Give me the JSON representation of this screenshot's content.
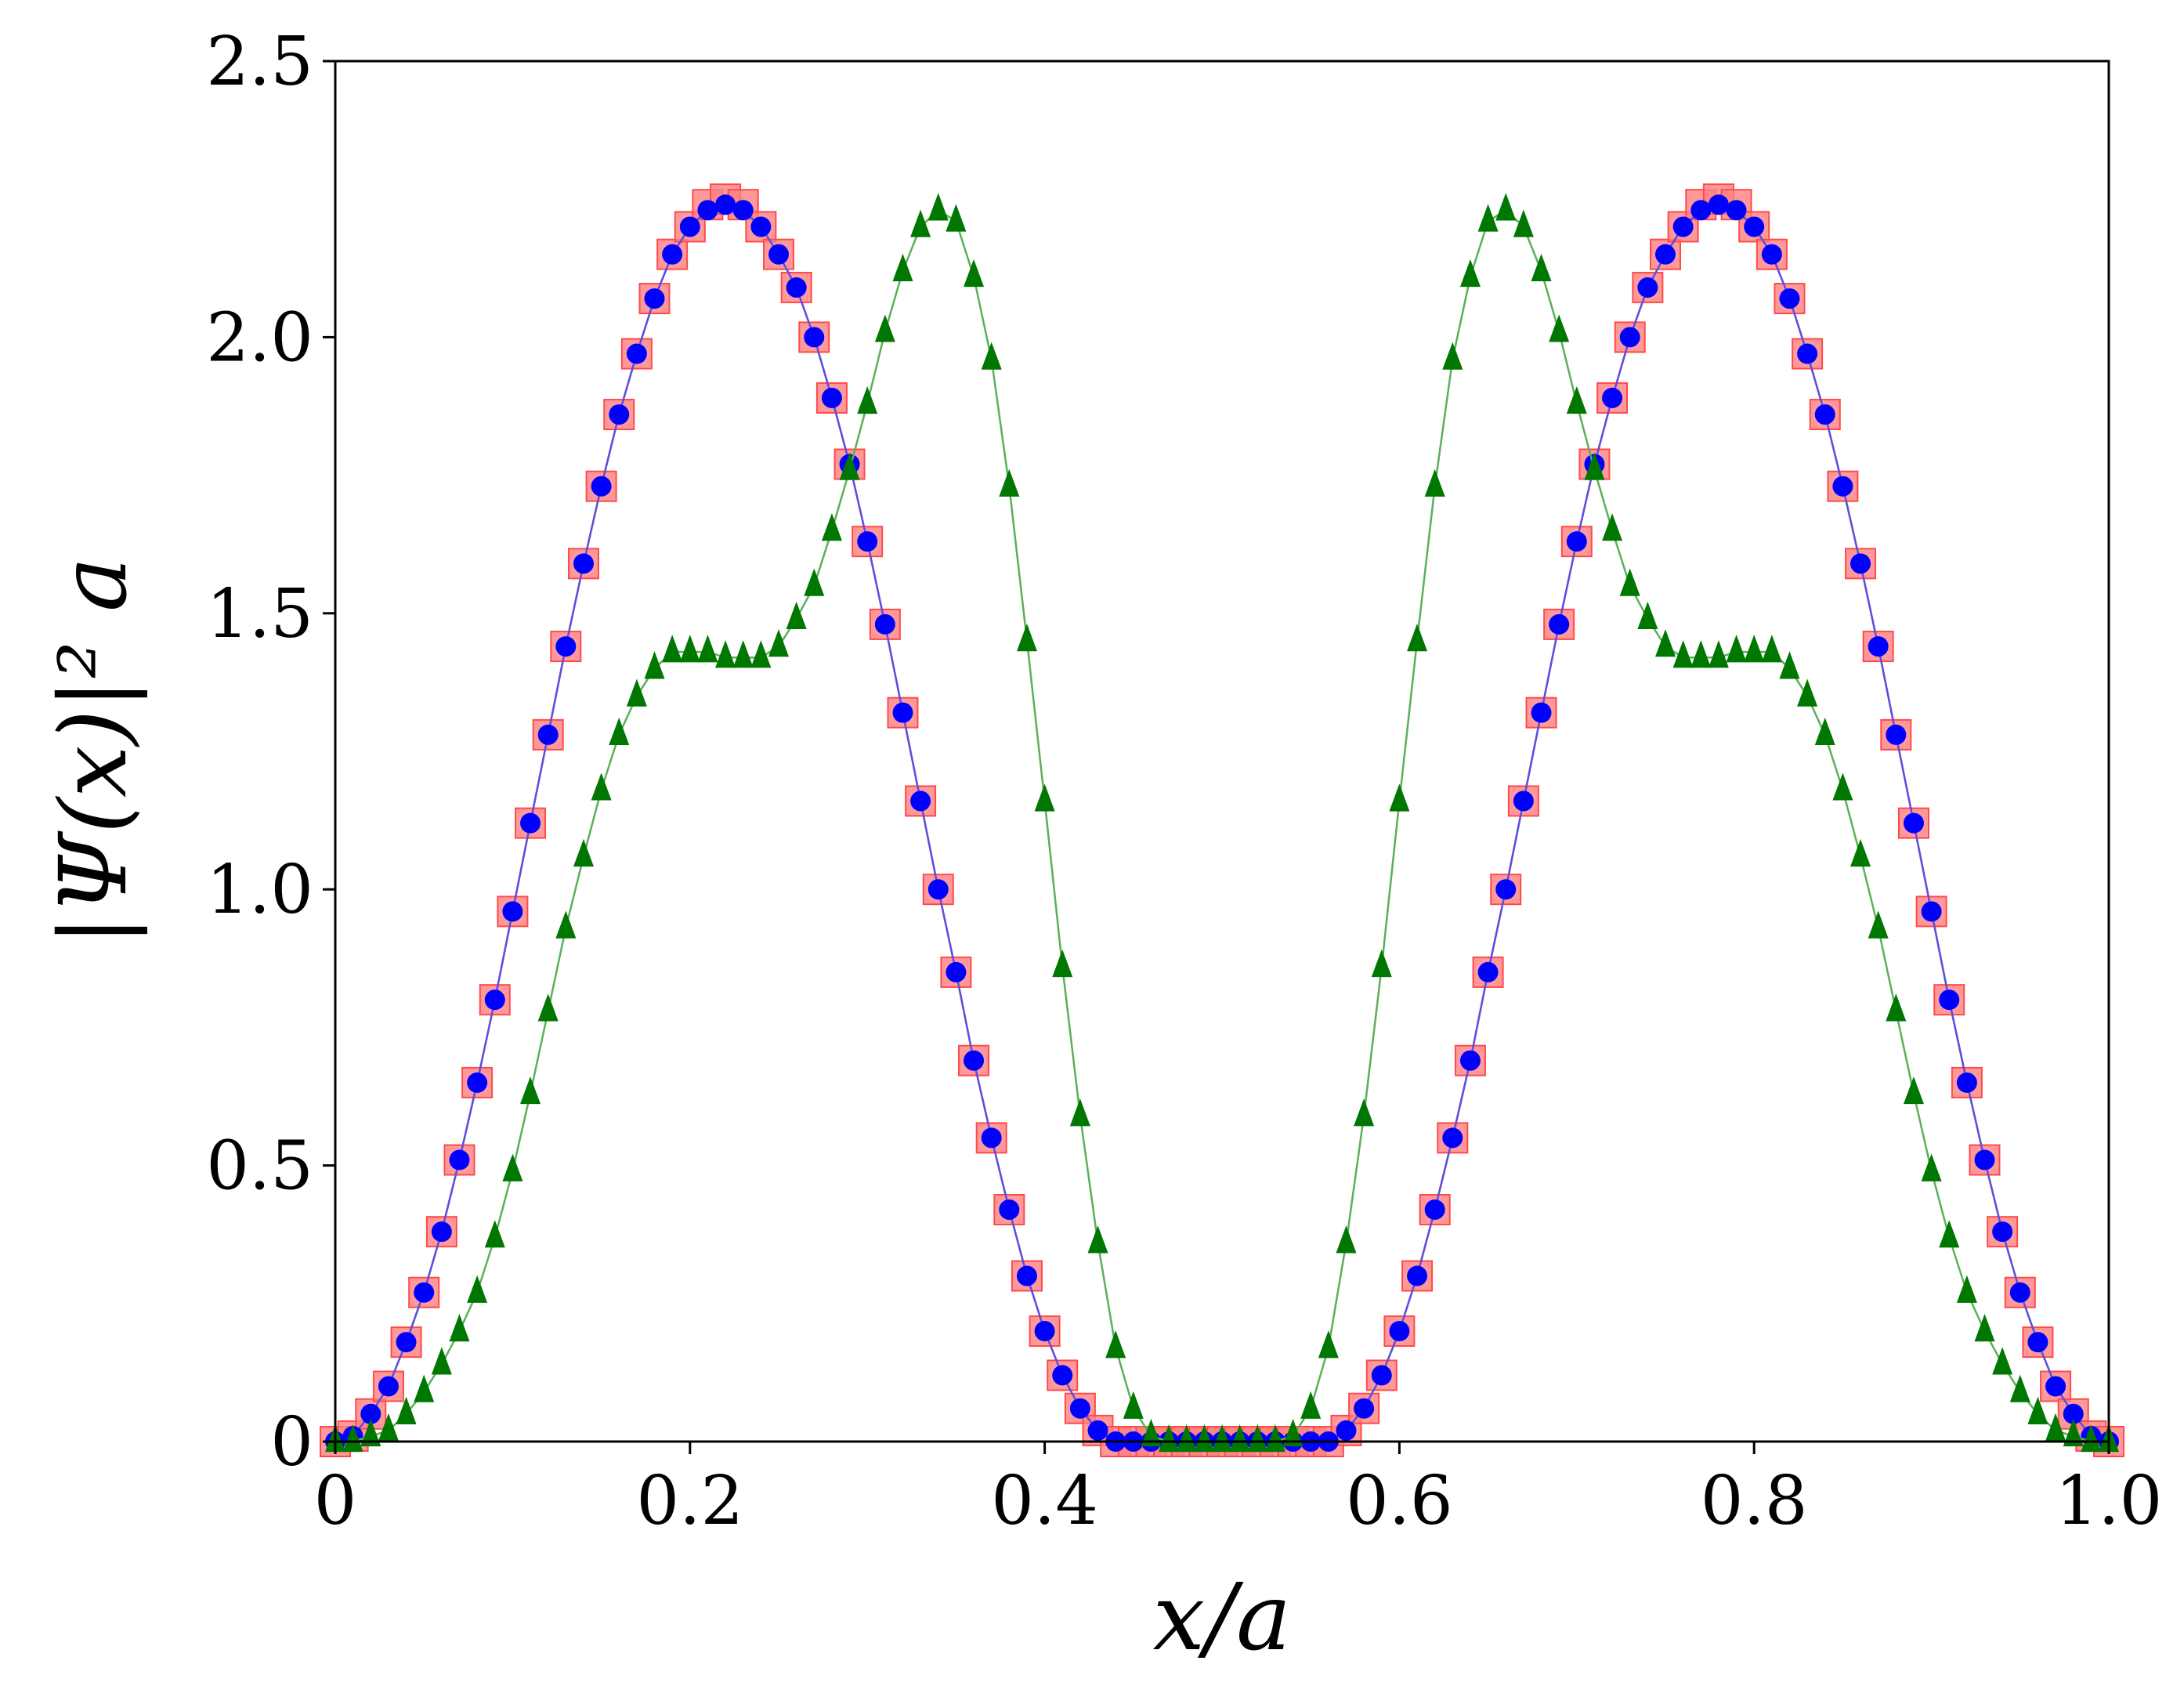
{
  "chart_data": {
    "type": "scatter",
    "title": "",
    "xlabel": "x/a",
    "ylabel": "|Ψ(x)|² a",
    "xlim": [
      0,
      1
    ],
    "ylim": [
      0,
      2.5
    ],
    "xticks": [
      0,
      0.2,
      0.4,
      0.6,
      0.8,
      1.0
    ],
    "xtick_labels": [
      "0",
      "0.2",
      "0.4",
      "0.6",
      "0.8",
      "1.0"
    ],
    "yticks": [
      0,
      0.5,
      1.0,
      1.5,
      2.0,
      2.5
    ],
    "ytick_labels": [
      "0",
      "0.5",
      "1.0",
      "1.5",
      "2.0",
      "2.5"
    ],
    "grid": false,
    "x": [
      0.0,
      0.01,
      0.02,
      0.03,
      0.04,
      0.05,
      0.06,
      0.07,
      0.08,
      0.09,
      0.1,
      0.11,
      0.12,
      0.13,
      0.14,
      0.15,
      0.16,
      0.17,
      0.18,
      0.19,
      0.2,
      0.21,
      0.22,
      0.23,
      0.24,
      0.25,
      0.26,
      0.27,
      0.28,
      0.29,
      0.3,
      0.31,
      0.32,
      0.33,
      0.34,
      0.35,
      0.36,
      0.37,
      0.38,
      0.39,
      0.4,
      0.41,
      0.42,
      0.43,
      0.44,
      0.45,
      0.46,
      0.47,
      0.48,
      0.49,
      0.5,
      0.51,
      0.52,
      0.53,
      0.54,
      0.55,
      0.56,
      0.57,
      0.58,
      0.59,
      0.6,
      0.61,
      0.62,
      0.63,
      0.64,
      0.65,
      0.66,
      0.67,
      0.68,
      0.69,
      0.7,
      0.71,
      0.72,
      0.73,
      0.74,
      0.75,
      0.76,
      0.77,
      0.78,
      0.79,
      0.8,
      0.81,
      0.82,
      0.83,
      0.84,
      0.85,
      0.86,
      0.87,
      0.88,
      0.89,
      0.9,
      0.91,
      0.92,
      0.93,
      0.94,
      0.95,
      0.96,
      0.97,
      0.98,
      0.99,
      1.0
    ],
    "series": [
      {
        "marker": "square",
        "color": "#ff6b6b",
        "values": [
          0.0,
          0.01,
          0.05,
          0.1,
          0.18,
          0.27,
          0.38,
          0.51,
          0.65,
          0.8,
          0.96,
          1.12,
          1.28,
          1.44,
          1.59,
          1.73,
          1.86,
          1.97,
          2.07,
          2.15,
          2.2,
          2.24,
          2.25,
          2.24,
          2.2,
          2.15,
          2.09,
          2.0,
          1.89,
          1.77,
          1.63,
          1.48,
          1.32,
          1.16,
          1.0,
          0.85,
          0.69,
          0.55,
          0.42,
          0.3,
          0.2,
          0.12,
          0.06,
          0.02,
          0.0,
          0.0,
          0.0,
          0.0,
          0.0,
          0.0,
          0.0,
          0.0,
          0.0,
          0.0,
          0.0,
          0.0,
          0.0,
          0.02,
          0.06,
          0.12,
          0.2,
          0.3,
          0.42,
          0.55,
          0.69,
          0.85,
          1.0,
          1.16,
          1.32,
          1.48,
          1.63,
          1.77,
          1.89,
          2.0,
          2.09,
          2.15,
          2.2,
          2.24,
          2.25,
          2.24,
          2.2,
          2.15,
          2.07,
          1.97,
          1.86,
          1.73,
          1.59,
          1.44,
          1.28,
          1.12,
          0.96,
          0.8,
          0.65,
          0.51,
          0.38,
          0.27,
          0.18,
          0.1,
          0.05,
          0.01,
          0.0
        ]
      },
      {
        "marker": "circle",
        "color": "#0000ff",
        "values": [
          0.0,
          0.01,
          0.05,
          0.1,
          0.18,
          0.27,
          0.38,
          0.51,
          0.65,
          0.8,
          0.96,
          1.12,
          1.28,
          1.44,
          1.59,
          1.73,
          1.86,
          1.97,
          2.07,
          2.15,
          2.2,
          2.23,
          2.24,
          2.23,
          2.2,
          2.15,
          2.09,
          2.0,
          1.89,
          1.77,
          1.63,
          1.48,
          1.32,
          1.16,
          1.0,
          0.85,
          0.69,
          0.55,
          0.42,
          0.3,
          0.2,
          0.12,
          0.06,
          0.02,
          0.0,
          0.0,
          0.0,
          0.0,
          0.0,
          0.0,
          0.0,
          0.0,
          0.0,
          0.0,
          0.0,
          0.0,
          0.0,
          0.02,
          0.06,
          0.12,
          0.2,
          0.3,
          0.42,
          0.55,
          0.69,
          0.85,
          1.0,
          1.16,
          1.32,
          1.48,
          1.63,
          1.77,
          1.89,
          2.0,
          2.09,
          2.15,
          2.2,
          2.23,
          2.24,
          2.23,
          2.2,
          2.15,
          2.07,
          1.97,
          1.86,
          1.73,
          1.59,
          1.44,
          1.28,
          1.12,
          0.96,
          0.8,
          0.65,
          0.51,
          0.38,
          0.27,
          0.18,
          0.1,
          0.05,
          0.01,
          0.0
        ]
      },
      {
        "marker": "triangle",
        "color": "#007700",
        "values": [
          0.0,
          0.0,
          0.01,
          0.02,
          0.05,
          0.09,
          0.14,
          0.2,
          0.27,
          0.37,
          0.49,
          0.63,
          0.78,
          0.93,
          1.06,
          1.18,
          1.28,
          1.35,
          1.4,
          1.43,
          1.43,
          1.43,
          1.42,
          1.42,
          1.42,
          1.44,
          1.49,
          1.55,
          1.65,
          1.76,
          1.88,
          2.01,
          2.12,
          2.2,
          2.23,
          2.21,
          2.11,
          1.96,
          1.73,
          1.45,
          1.16,
          0.86,
          0.59,
          0.36,
          0.17,
          0.06,
          0.01,
          0.0,
          0.0,
          0.0,
          0.0,
          0.0,
          0.0,
          0.0,
          0.01,
          0.06,
          0.17,
          0.36,
          0.59,
          0.86,
          1.16,
          1.45,
          1.73,
          1.96,
          2.11,
          2.21,
          2.23,
          2.2,
          2.12,
          2.01,
          1.88,
          1.76,
          1.65,
          1.55,
          1.49,
          1.44,
          1.42,
          1.42,
          1.42,
          1.43,
          1.43,
          1.43,
          1.4,
          1.35,
          1.28,
          1.18,
          1.06,
          0.93,
          0.78,
          0.63,
          0.49,
          0.37,
          0.27,
          0.2,
          0.14,
          0.09,
          0.05,
          0.02,
          0.01,
          0.0,
          0.0
        ]
      }
    ]
  }
}
